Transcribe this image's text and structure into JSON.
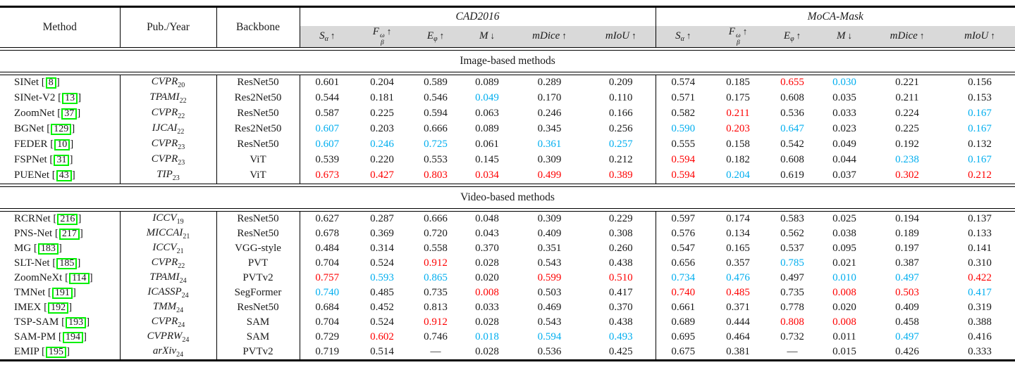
{
  "colors": {
    "highlight_red": "#fe0000",
    "highlight_blue": "#00aeef",
    "header_band_bg": "#d9d9d9",
    "citation_box_green": "#00f000",
    "rule_black": "#000000"
  },
  "header": {
    "method_label": "Method",
    "pub_year_label": "Pub./Year",
    "backbone_label": "Backbone",
    "groups": [
      {
        "key": "cad2016",
        "label": "CAD2016"
      },
      {
        "key": "moca-mask",
        "label": "MoCA-Mask"
      }
    ],
    "metrics": [
      {
        "key": "s-alpha",
        "base": "S",
        "sub": "α",
        "arrow": "↑"
      },
      {
        "key": "f-beta-omega",
        "base": "F",
        "sub": "β",
        "sup": "ω",
        "arrow": "↑"
      },
      {
        "key": "e-phi",
        "base": "E",
        "sub": "φ",
        "arrow": "↑"
      },
      {
        "key": "mae",
        "base": "M",
        "arrow": "↓"
      },
      {
        "key": "mdice",
        "base": "mDice",
        "arrow": "↑"
      },
      {
        "key": "miou",
        "base": "mIoU",
        "arrow": "↑"
      }
    ]
  },
  "sections": [
    {
      "title": "Image-based methods",
      "rows": [
        {
          "method": "SINet",
          "cite": "8",
          "venue": "CVPR",
          "year": "20",
          "backbone": "ResNet50",
          "values": [
            "0.601",
            "0.204",
            "0.589",
            "0.089",
            "0.289",
            "0.209",
            "0.574",
            "0.185",
            "0.655",
            "0.030",
            "0.221",
            "0.156"
          ],
          "marks": [
            "-",
            "-",
            "-",
            "-",
            "-",
            "-",
            "-",
            "-",
            "r",
            "b",
            "-",
            "-"
          ]
        },
        {
          "method": "SINet-V2",
          "cite": "13",
          "venue": "TPAMI",
          "year": "22",
          "backbone": "Res2Net50",
          "values": [
            "0.544",
            "0.181",
            "0.546",
            "0.049",
            "0.170",
            "0.110",
            "0.571",
            "0.175",
            "0.608",
            "0.035",
            "0.211",
            "0.153"
          ],
          "marks": [
            "-",
            "-",
            "-",
            "b",
            "-",
            "-",
            "-",
            "-",
            "-",
            "-",
            "-",
            "-"
          ]
        },
        {
          "method": "ZoomNet",
          "cite": "37",
          "venue": "CVPR",
          "year": "22",
          "backbone": "ResNet50",
          "values": [
            "0.587",
            "0.225",
            "0.594",
            "0.063",
            "0.246",
            "0.166",
            "0.582",
            "0.211",
            "0.536",
            "0.033",
            "0.224",
            "0.167"
          ],
          "marks": [
            "-",
            "-",
            "-",
            "-",
            "-",
            "-",
            "-",
            "r",
            "-",
            "-",
            "-",
            "b"
          ]
        },
        {
          "method": "BGNet",
          "cite": "129",
          "venue": "IJCAI",
          "year": "22",
          "backbone": "Res2Net50",
          "values": [
            "0.607",
            "0.203",
            "0.666",
            "0.089",
            "0.345",
            "0.256",
            "0.590",
            "0.203",
            "0.647",
            "0.023",
            "0.225",
            "0.167"
          ],
          "marks": [
            "b",
            "-",
            "-",
            "-",
            "-",
            "-",
            "b",
            "r",
            "b",
            "-",
            "-",
            "b"
          ]
        },
        {
          "method": "FEDER",
          "cite": "10",
          "venue": "CVPR",
          "year": "23",
          "backbone": "ResNet50",
          "values": [
            "0.607",
            "0.246",
            "0.725",
            "0.061",
            "0.361",
            "0.257",
            "0.555",
            "0.158",
            "0.542",
            "0.049",
            "0.192",
            "0.132"
          ],
          "marks": [
            "b",
            "b",
            "b",
            "-",
            "b",
            "b",
            "-",
            "-",
            "-",
            "-",
            "-",
            "-"
          ]
        },
        {
          "method": "FSPNet",
          "cite": "31",
          "venue": "CVPR",
          "year": "23",
          "backbone": "ViT",
          "values": [
            "0.539",
            "0.220",
            "0.553",
            "0.145",
            "0.309",
            "0.212",
            "0.594",
            "0.182",
            "0.608",
            "0.044",
            "0.238",
            "0.167"
          ],
          "marks": [
            "-",
            "-",
            "-",
            "-",
            "-",
            "-",
            "r",
            "-",
            "-",
            "-",
            "b",
            "b"
          ]
        },
        {
          "method": "PUENet",
          "cite": "43",
          "venue": "TIP",
          "year": "23",
          "backbone": "ViT",
          "values": [
            "0.673",
            "0.427",
            "0.803",
            "0.034",
            "0.499",
            "0.389",
            "0.594",
            "0.204",
            "0.619",
            "0.037",
            "0.302",
            "0.212"
          ],
          "marks": [
            "r",
            "r",
            "r",
            "r",
            "r",
            "r",
            "r",
            "b",
            "-",
            "-",
            "r",
            "r"
          ]
        }
      ]
    },
    {
      "title": "Video-based methods",
      "rows": [
        {
          "method": "RCRNet",
          "cite": "216",
          "venue": "ICCV",
          "year": "19",
          "backbone": "ResNet50",
          "values": [
            "0.627",
            "0.287",
            "0.666",
            "0.048",
            "0.309",
            "0.229",
            "0.597",
            "0.174",
            "0.583",
            "0.025",
            "0.194",
            "0.137"
          ],
          "marks": [
            "-",
            "-",
            "-",
            "-",
            "-",
            "-",
            "-",
            "-",
            "-",
            "-",
            "-",
            "-"
          ]
        },
        {
          "method": "PNS-Net",
          "cite": "217",
          "venue": "MICCAI",
          "year": "21",
          "backbone": "ResNet50",
          "values": [
            "0.678",
            "0.369",
            "0.720",
            "0.043",
            "0.409",
            "0.308",
            "0.576",
            "0.134",
            "0.562",
            "0.038",
            "0.189",
            "0.133"
          ],
          "marks": [
            "-",
            "-",
            "-",
            "-",
            "-",
            "-",
            "-",
            "-",
            "-",
            "-",
            "-",
            "-"
          ]
        },
        {
          "method": "MG",
          "cite": "183",
          "venue": "ICCV",
          "year": "21",
          "backbone": "VGG-style",
          "values": [
            "0.484",
            "0.314",
            "0.558",
            "0.370",
            "0.351",
            "0.260",
            "0.547",
            "0.165",
            "0.537",
            "0.095",
            "0.197",
            "0.141"
          ],
          "marks": [
            "-",
            "-",
            "-",
            "-",
            "-",
            "-",
            "-",
            "-",
            "-",
            "-",
            "-",
            "-"
          ]
        },
        {
          "method": "SLT-Net",
          "cite": "185",
          "venue": "CVPR",
          "year": "22",
          "backbone": "PVT",
          "values": [
            "0.704",
            "0.524",
            "0.912",
            "0.028",
            "0.543",
            "0.438",
            "0.656",
            "0.357",
            "0.785",
            "0.021",
            "0.387",
            "0.310"
          ],
          "marks": [
            "-",
            "-",
            "r",
            "-",
            "-",
            "-",
            "-",
            "-",
            "b",
            "-",
            "-",
            "-"
          ]
        },
        {
          "method": "ZoomNeXt",
          "cite": "114",
          "venue": "TPAMI",
          "year": "24",
          "backbone": "PVTv2",
          "values": [
            "0.757",
            "0.593",
            "0.865",
            "0.020",
            "0.599",
            "0.510",
            "0.734",
            "0.476",
            "0.497",
            "0.010",
            "0.497",
            "0.422"
          ],
          "marks": [
            "r",
            "b",
            "b",
            "-",
            "r",
            "r",
            "b",
            "b",
            "-",
            "b",
            "b",
            "r"
          ]
        },
        {
          "method": "TMNet",
          "cite": "191",
          "venue": "ICASSP",
          "year": "24",
          "backbone": "SegFormer",
          "values": [
            "0.740",
            "0.485",
            "0.735",
            "0.008",
            "0.503",
            "0.417",
            "0.740",
            "0.485",
            "0.735",
            "0.008",
            "0.503",
            "0.417"
          ],
          "marks": [
            "b",
            "-",
            "-",
            "r",
            "-",
            "-",
            "r",
            "r",
            "-",
            "r",
            "r",
            "b"
          ]
        },
        {
          "method": "IMEX",
          "cite": "192",
          "venue": "TMM",
          "year": "24",
          "backbone": "ResNet50",
          "values": [
            "0.684",
            "0.452",
            "0.813",
            "0.033",
            "0.469",
            "0.370",
            "0.661",
            "0.371",
            "0.778",
            "0.020",
            "0.409",
            "0.319"
          ],
          "marks": [
            "-",
            "-",
            "-",
            "-",
            "-",
            "-",
            "-",
            "-",
            "-",
            "-",
            "-",
            "-"
          ]
        },
        {
          "method": "TSP-SAM",
          "cite": "193",
          "venue": "CVPR",
          "year": "24",
          "backbone": "SAM",
          "values": [
            "0.704",
            "0.524",
            "0.912",
            "0.028",
            "0.543",
            "0.438",
            "0.689",
            "0.444",
            "0.808",
            "0.008",
            "0.458",
            "0.388"
          ],
          "marks": [
            "-",
            "-",
            "r",
            "-",
            "-",
            "-",
            "-",
            "-",
            "r",
            "r",
            "-",
            "-"
          ]
        },
        {
          "method": "SAM-PM",
          "cite": "194",
          "venue": "CVPRW",
          "year": "24",
          "backbone": "SAM",
          "values": [
            "0.729",
            "0.602",
            "0.746",
            "0.018",
            "0.594",
            "0.493",
            "0.695",
            "0.464",
            "0.732",
            "0.011",
            "0.497",
            "0.416"
          ],
          "marks": [
            "-",
            "r",
            "-",
            "b",
            "b",
            "b",
            "-",
            "-",
            "-",
            "-",
            "b",
            "-"
          ]
        },
        {
          "method": "EMIP",
          "cite": "195",
          "venue": "arXiv",
          "year": "24",
          "backbone": "PVTv2",
          "values": [
            "0.719",
            "0.514",
            "—",
            "0.028",
            "0.536",
            "0.425",
            "0.675",
            "0.381",
            "—",
            "0.015",
            "0.426",
            "0.333"
          ],
          "marks": [
            "-",
            "-",
            "-",
            "-",
            "-",
            "-",
            "-",
            "-",
            "-",
            "-",
            "-",
            "-"
          ]
        }
      ]
    }
  ]
}
